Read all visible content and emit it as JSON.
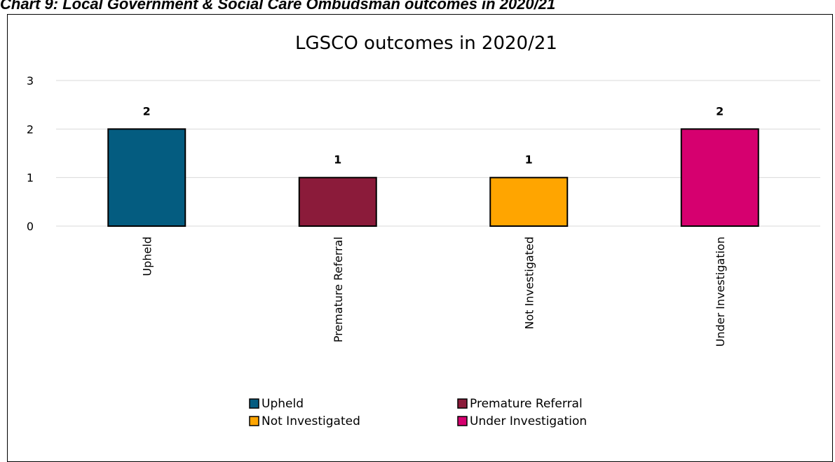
{
  "caption": "Chart 9: Local Government & Social Care Ombudsman outcomes in 2020/21",
  "chart_data": {
    "type": "bar",
    "title": "LGSCO outcomes in 2020/21",
    "categories": [
      "Upheld",
      "Premature Referral",
      "Not Investigated",
      "Under Investigation"
    ],
    "values": [
      2,
      1,
      1,
      2
    ],
    "data_labels": [
      "2",
      "1",
      "1",
      "2"
    ],
    "colors": [
      "#045C80",
      "#8B1B3A",
      "#FFA500",
      "#D6006F"
    ],
    "ylim": [
      0,
      3
    ],
    "yticks": [
      "0",
      "1",
      "2",
      "3"
    ],
    "grid": true,
    "legend_position": "bottom",
    "legend": [
      "Upheld",
      "Premature Referral",
      "Not Investigated",
      "Under Investigation"
    ],
    "xlabel": "",
    "ylabel": ""
  }
}
